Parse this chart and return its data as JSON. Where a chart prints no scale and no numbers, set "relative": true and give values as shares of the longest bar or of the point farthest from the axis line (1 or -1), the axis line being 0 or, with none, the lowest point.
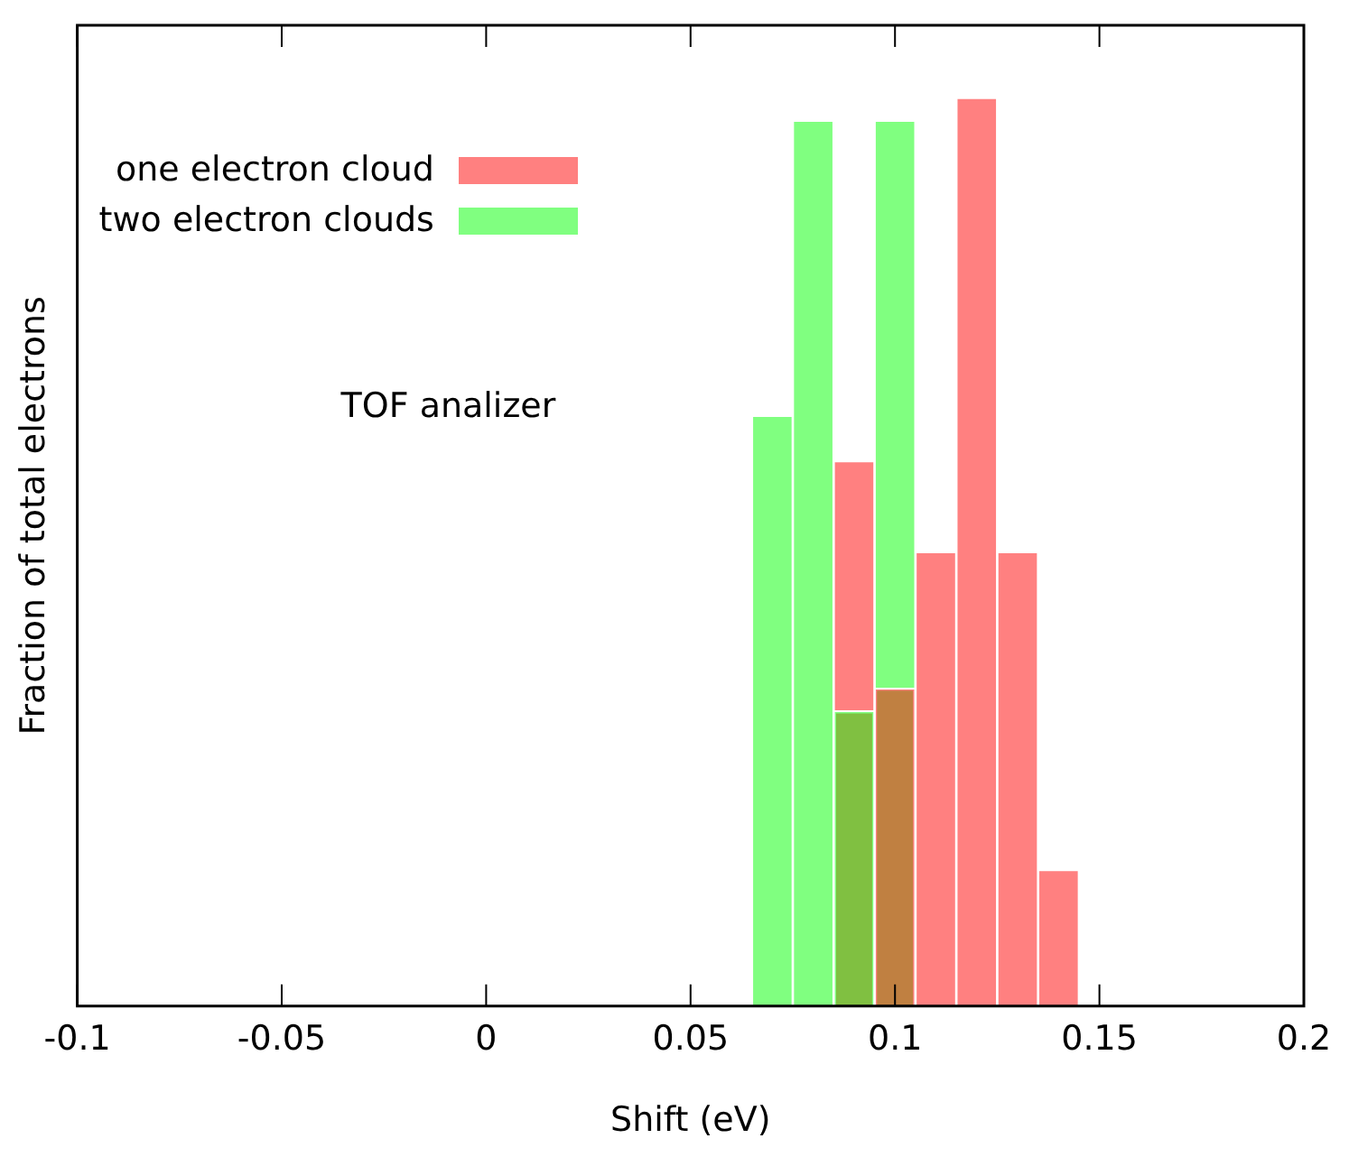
{
  "chart_data": {
    "type": "bar",
    "xlabel": "Shift (eV)",
    "ylabel": "Fraction of total electrons",
    "relative": true,
    "x": [
      0.07,
      0.08,
      0.09,
      0.1,
      0.11,
      0.12,
      0.13,
      0.14
    ],
    "series": [
      {
        "name": "one electron cloud",
        "color": "#ff8080",
        "values": [
          null,
          null,
          0.6,
          0.35,
          0.5,
          1,
          0.5,
          0.15
        ]
      },
      {
        "name": "two electron clouds",
        "color": "#80ff80",
        "values": [
          0.65,
          0.975,
          0.325,
          0.975,
          null,
          null,
          null,
          null
        ]
      }
    ],
    "xlim": [
      -0.1,
      0.2
    ],
    "xticks": [
      -0.1,
      -0.05,
      0,
      0.05,
      0.1,
      0.15,
      0.2
    ],
    "legend": "top left",
    "grid": false,
    "annotations": [
      "TOF analizer"
    ]
  }
}
